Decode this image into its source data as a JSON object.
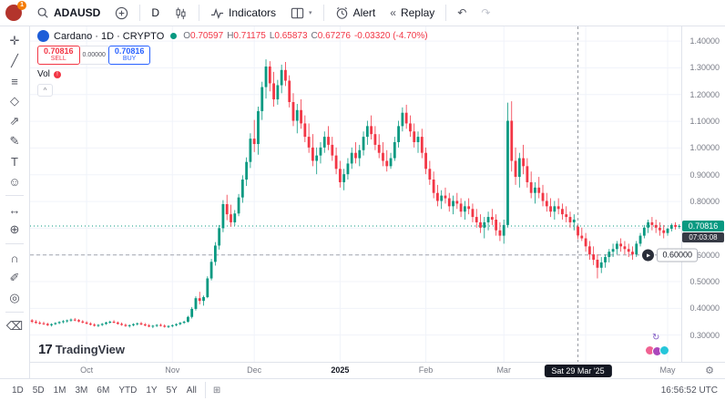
{
  "top_toolbar": {
    "badge": "1",
    "symbol": "ADAUSD",
    "interval": "D",
    "indicators_label": "Indicators",
    "alert_label": "Alert",
    "replay_label": "Replay"
  },
  "legend": {
    "title": "Cardano · 1D · CRYPTO",
    "o_label": "O",
    "o": "0.70597",
    "h_label": "H",
    "h": "0.71175",
    "l_label": "L",
    "l": "0.65873",
    "c_label": "C",
    "c": "0.67276",
    "change": "-0.03320 (-4.70%)",
    "vol_label": "Vol"
  },
  "trade_widget": {
    "sell_price": "0.70816",
    "sell_label": "SELL",
    "spread": "0.00000",
    "buy_price": "0.70816",
    "buy_label": "BUY"
  },
  "price_axis": {
    "labels": [
      {
        "text": "1.40000",
        "value": 1.4
      },
      {
        "text": "1.30000",
        "value": 1.3
      },
      {
        "text": "1.20000",
        "value": 1.2
      },
      {
        "text": "1.10000",
        "value": 1.1
      },
      {
        "text": "1.00000",
        "value": 1.0
      },
      {
        "text": "0.90000",
        "value": 0.9
      },
      {
        "text": "0.80000",
        "value": 0.8
      },
      {
        "text": "0.60000",
        "value": 0.6
      },
      {
        "text": "0.50000",
        "value": 0.5
      },
      {
        "text": "0.40000",
        "value": 0.4
      },
      {
        "text": "0.30000",
        "value": 0.3
      }
    ],
    "current_price_label": "0.70816",
    "countdown": "07:03:08",
    "alert_line_label": "0.60000"
  },
  "time_axis": {
    "labels": [
      {
        "text": "Oct",
        "idx": 14
      },
      {
        "text": "Nov",
        "idx": 36
      },
      {
        "text": "Dec",
        "idx": 57
      },
      {
        "text": "2025",
        "idx": 79,
        "bold": true
      },
      {
        "text": "Feb",
        "idx": 101
      },
      {
        "text": "Mar",
        "idx": 121
      },
      {
        "text": "May",
        "idx": 163
      }
    ],
    "crosshair_label": "Sat 29 Mar '25"
  },
  "bottom_bar": {
    "ranges": [
      "1D",
      "5D",
      "1M",
      "3M",
      "6M",
      "YTD",
      "1Y",
      "5Y",
      "All"
    ],
    "clock": "16:56:52 UTC"
  },
  "watermark": {
    "logo": "17",
    "text": "TradingView"
  },
  "left_toolbar": {
    "items": [
      {
        "name": "cursor-icon",
        "glyph": "✛"
      },
      {
        "name": "trend-line-icon",
        "glyph": "╱"
      },
      {
        "name": "fib-retracement-icon",
        "glyph": "≡"
      },
      {
        "name": "xabcd-pattern-icon",
        "glyph": "◇"
      },
      {
        "name": "long-position-icon",
        "glyph": "⇗"
      },
      {
        "name": "brush-icon",
        "glyph": "✎"
      },
      {
        "name": "text-icon",
        "glyph": "T"
      },
      {
        "name": "emoji-icon",
        "glyph": "☺"
      },
      {
        "sep": true
      },
      {
        "name": "measure-icon",
        "glyph": "↔"
      },
      {
        "name": "zoom-in-icon",
        "glyph": "⊕"
      },
      {
        "sep": true
      },
      {
        "name": "magnet-icon",
        "glyph": "∩"
      },
      {
        "name": "edit-icon",
        "glyph": "✐"
      },
      {
        "name": "hide-drawings-icon",
        "glyph": "◎"
      },
      {
        "sep": true
      },
      {
        "name": "remove-drawings-icon",
        "glyph": "⌫"
      }
    ]
  },
  "chart_data": {
    "type": "candlestick",
    "symbol": "ADAUSD",
    "timeframe": "1D",
    "price_top": 1.455,
    "price_bottom": 0.2,
    "grid_prices": [
      0.3,
      0.4,
      0.5,
      0.6,
      0.7,
      0.8,
      0.9,
      1.0,
      1.1,
      1.2,
      1.3,
      1.4
    ],
    "month_grid_idx": [
      14,
      36,
      57,
      79,
      101,
      121,
      142,
      163
    ],
    "crosshair_idx": 140,
    "current_price": 0.70816,
    "alert_price": 0.6,
    "up_color": "#089981",
    "down_color": "#f23645",
    "candles": [
      [
        0.355,
        0.36,
        0.345,
        0.35
      ],
      [
        0.35,
        0.356,
        0.342,
        0.346
      ],
      [
        0.346,
        0.352,
        0.34,
        0.344
      ],
      [
        0.344,
        0.35,
        0.338,
        0.342
      ],
      [
        0.342,
        0.346,
        0.334,
        0.337
      ],
      [
        0.337,
        0.344,
        0.332,
        0.341
      ],
      [
        0.341,
        0.348,
        0.338,
        0.345
      ],
      [
        0.345,
        0.352,
        0.341,
        0.349
      ],
      [
        0.349,
        0.356,
        0.344,
        0.352
      ],
      [
        0.352,
        0.358,
        0.347,
        0.355
      ],
      [
        0.355,
        0.362,
        0.35,
        0.358
      ],
      [
        0.358,
        0.364,
        0.352,
        0.356
      ],
      [
        0.356,
        0.36,
        0.348,
        0.351
      ],
      [
        0.351,
        0.356,
        0.344,
        0.347
      ],
      [
        0.347,
        0.352,
        0.34,
        0.343
      ],
      [
        0.343,
        0.348,
        0.336,
        0.339
      ],
      [
        0.339,
        0.344,
        0.332,
        0.335
      ],
      [
        0.335,
        0.341,
        0.33,
        0.338
      ],
      [
        0.338,
        0.345,
        0.334,
        0.342
      ],
      [
        0.342,
        0.35,
        0.338,
        0.347
      ],
      [
        0.347,
        0.354,
        0.343,
        0.35
      ],
      [
        0.35,
        0.356,
        0.344,
        0.347
      ],
      [
        0.347,
        0.351,
        0.339,
        0.342
      ],
      [
        0.342,
        0.347,
        0.335,
        0.338
      ],
      [
        0.338,
        0.343,
        0.331,
        0.334
      ],
      [
        0.334,
        0.34,
        0.328,
        0.337
      ],
      [
        0.337,
        0.344,
        0.333,
        0.341
      ],
      [
        0.341,
        0.347,
        0.336,
        0.344
      ],
      [
        0.344,
        0.349,
        0.337,
        0.34
      ],
      [
        0.34,
        0.345,
        0.333,
        0.336
      ],
      [
        0.336,
        0.341,
        0.329,
        0.332
      ],
      [
        0.332,
        0.338,
        0.326,
        0.335
      ],
      [
        0.335,
        0.341,
        0.33,
        0.338
      ],
      [
        0.338,
        0.343,
        0.332,
        0.335
      ],
      [
        0.335,
        0.34,
        0.328,
        0.331
      ],
      [
        0.331,
        0.337,
        0.326,
        0.334
      ],
      [
        0.334,
        0.34,
        0.329,
        0.337
      ],
      [
        0.337,
        0.344,
        0.333,
        0.341
      ],
      [
        0.341,
        0.349,
        0.337,
        0.346
      ],
      [
        0.346,
        0.354,
        0.342,
        0.35
      ],
      [
        0.35,
        0.372,
        0.347,
        0.368
      ],
      [
        0.368,
        0.405,
        0.362,
        0.398
      ],
      [
        0.398,
        0.445,
        0.392,
        0.438
      ],
      [
        0.438,
        0.462,
        0.415,
        0.428
      ],
      [
        0.428,
        0.448,
        0.41,
        0.442
      ],
      [
        0.442,
        0.52,
        0.438,
        0.512
      ],
      [
        0.512,
        0.585,
        0.505,
        0.574
      ],
      [
        0.574,
        0.648,
        0.56,
        0.635
      ],
      [
        0.635,
        0.712,
        0.62,
        0.7
      ],
      [
        0.7,
        0.805,
        0.685,
        0.79
      ],
      [
        0.79,
        0.825,
        0.73,
        0.752
      ],
      [
        0.752,
        0.788,
        0.705,
        0.722
      ],
      [
        0.722,
        0.768,
        0.71,
        0.755
      ],
      [
        0.755,
        0.828,
        0.745,
        0.815
      ],
      [
        0.815,
        0.898,
        0.795,
        0.882
      ],
      [
        0.882,
        0.965,
        0.858,
        0.948
      ],
      [
        0.948,
        1.055,
        0.925,
        1.035
      ],
      [
        1.035,
        1.105,
        0.985,
        1.015
      ],
      [
        1.015,
        1.155,
        0.975,
        1.138
      ],
      [
        1.138,
        1.248,
        1.105,
        1.228
      ],
      [
        1.228,
        1.332,
        1.185,
        1.305
      ],
      [
        1.305,
        1.325,
        1.212,
        1.242
      ],
      [
        1.242,
        1.285,
        1.155,
        1.182
      ],
      [
        1.182,
        1.255,
        1.162,
        1.235
      ],
      [
        1.235,
        1.312,
        1.205,
        1.292
      ],
      [
        1.292,
        1.322,
        1.232,
        1.252
      ],
      [
        1.252,
        1.272,
        1.152,
        1.172
      ],
      [
        1.172,
        1.205,
        1.082,
        1.102
      ],
      [
        1.102,
        1.165,
        1.055,
        1.142
      ],
      [
        1.142,
        1.182,
        1.072,
        1.092
      ],
      [
        1.092,
        1.122,
        1.022,
        1.042
      ],
      [
        1.042,
        1.092,
        0.982,
        1.002
      ],
      [
        1.002,
        1.052,
        0.932,
        0.952
      ],
      [
        0.952,
        1.002,
        0.902,
        0.972
      ],
      [
        0.972,
        1.022,
        0.942,
        1.002
      ],
      [
        1.002,
        1.062,
        0.982,
        1.042
      ],
      [
        1.042,
        1.082,
        0.992,
        1.012
      ],
      [
        1.012,
        1.042,
        0.952,
        0.972
      ],
      [
        0.972,
        1.002,
        0.902,
        0.922
      ],
      [
        0.922,
        0.952,
        0.852,
        0.872
      ],
      [
        0.872,
        0.922,
        0.842,
        0.902
      ],
      [
        0.902,
        0.962,
        0.882,
        0.942
      ],
      [
        0.942,
        1.002,
        0.922,
        0.982
      ],
      [
        0.982,
        1.022,
        0.942,
        0.962
      ],
      [
        0.962,
        1.012,
        0.932,
        0.992
      ],
      [
        0.992,
        1.062,
        0.972,
        1.042
      ],
      [
        1.042,
        1.102,
        1.012,
        1.082
      ],
      [
        1.082,
        1.122,
        1.032,
        1.052
      ],
      [
        1.052,
        1.082,
        0.992,
        1.012
      ],
      [
        1.012,
        1.052,
        0.962,
        0.982
      ],
      [
        0.982,
        1.022,
        0.932,
        0.952
      ],
      [
        0.952,
        0.992,
        0.912,
        0.932
      ],
      [
        0.932,
        0.982,
        0.922,
        0.962
      ],
      [
        0.962,
        1.042,
        0.952,
        1.022
      ],
      [
        1.022,
        1.102,
        1.002,
        1.082
      ],
      [
        1.082,
        1.152,
        1.062,
        1.132
      ],
      [
        1.132,
        1.162,
        1.072,
        1.092
      ],
      [
        1.092,
        1.122,
        1.042,
        1.062
      ],
      [
        1.062,
        1.092,
        1.002,
        1.022
      ],
      [
        1.022,
        1.062,
        0.982,
        1.042
      ],
      [
        1.042,
        1.072,
        0.962,
        0.982
      ],
      [
        0.982,
        1.002,
        0.902,
        0.922
      ],
      [
        0.922,
        0.952,
        0.862,
        0.882
      ],
      [
        0.882,
        0.912,
        0.812,
        0.832
      ],
      [
        0.832,
        0.862,
        0.782,
        0.802
      ],
      [
        0.802,
        0.842,
        0.772,
        0.822
      ],
      [
        0.822,
        0.852,
        0.792,
        0.812
      ],
      [
        0.812,
        0.832,
        0.762,
        0.782
      ],
      [
        0.782,
        0.822,
        0.752,
        0.802
      ],
      [
        0.802,
        0.832,
        0.772,
        0.792
      ],
      [
        0.792,
        0.812,
        0.742,
        0.762
      ],
      [
        0.762,
        0.802,
        0.732,
        0.782
      ],
      [
        0.782,
        0.812,
        0.752,
        0.772
      ],
      [
        0.772,
        0.792,
        0.722,
        0.742
      ],
      [
        0.742,
        0.772,
        0.702,
        0.722
      ],
      [
        0.722,
        0.752,
        0.682,
        0.702
      ],
      [
        0.702,
        0.742,
        0.662,
        0.722
      ],
      [
        0.722,
        0.762,
        0.692,
        0.742
      ],
      [
        0.742,
        0.772,
        0.712,
        0.732
      ],
      [
        0.732,
        0.752,
        0.672,
        0.692
      ],
      [
        0.692,
        0.722,
        0.652,
        0.672
      ],
      [
        0.672,
        0.732,
        0.642,
        0.712
      ],
      [
        0.712,
        1.17,
        0.702,
        1.102
      ],
      [
        1.102,
        1.175,
        0.912,
        0.952
      ],
      [
        0.952,
        1.002,
        0.862,
        0.892
      ],
      [
        0.892,
        0.982,
        0.852,
        0.962
      ],
      [
        0.962,
        1.012,
        0.902,
        0.932
      ],
      [
        0.932,
        0.962,
        0.852,
        0.872
      ],
      [
        0.872,
        0.912,
        0.812,
        0.832
      ],
      [
        0.832,
        0.872,
        0.792,
        0.852
      ],
      [
        0.852,
        0.892,
        0.812,
        0.832
      ],
      [
        0.832,
        0.862,
        0.782,
        0.802
      ],
      [
        0.802,
        0.832,
        0.762,
        0.782
      ],
      [
        0.782,
        0.812,
        0.742,
        0.762
      ],
      [
        0.762,
        0.802,
        0.732,
        0.782
      ],
      [
        0.782,
        0.812,
        0.752,
        0.772
      ],
      [
        0.772,
        0.792,
        0.732,
        0.752
      ],
      [
        0.752,
        0.782,
        0.722,
        0.742
      ],
      [
        0.742,
        0.762,
        0.702,
        0.722
      ],
      [
        0.722,
        0.752,
        0.692,
        0.732
      ],
      [
        0.70597,
        0.71175,
        0.65873,
        0.67276
      ],
      [
        0.672,
        0.702,
        0.652,
        0.662
      ],
      [
        0.662,
        0.682,
        0.612,
        0.632
      ],
      [
        0.632,
        0.652,
        0.582,
        0.602
      ],
      [
        0.602,
        0.632,
        0.562,
        0.582
      ],
      [
        0.582,
        0.602,
        0.512,
        0.552
      ],
      [
        0.552,
        0.592,
        0.532,
        0.572
      ],
      [
        0.572,
        0.602,
        0.552,
        0.592
      ],
      [
        0.592,
        0.622,
        0.572,
        0.612
      ],
      [
        0.612,
        0.642,
        0.592,
        0.622
      ],
      [
        0.622,
        0.652,
        0.602,
        0.642
      ],
      [
        0.642,
        0.662,
        0.612,
        0.632
      ],
      [
        0.632,
        0.652,
        0.602,
        0.622
      ],
      [
        0.622,
        0.642,
        0.592,
        0.612
      ],
      [
        0.612,
        0.632,
        0.582,
        0.602
      ],
      [
        0.602,
        0.652,
        0.592,
        0.642
      ],
      [
        0.642,
        0.682,
        0.632,
        0.672
      ],
      [
        0.672,
        0.712,
        0.662,
        0.702
      ],
      [
        0.702,
        0.732,
        0.682,
        0.722
      ],
      [
        0.722,
        0.742,
        0.692,
        0.712
      ],
      [
        0.712,
        0.732,
        0.682,
        0.702
      ],
      [
        0.702,
        0.722,
        0.672,
        0.692
      ],
      [
        0.692,
        0.712,
        0.662,
        0.682
      ],
      [
        0.682,
        0.702,
        0.672,
        0.698
      ],
      [
        0.698,
        0.718,
        0.688,
        0.712
      ],
      [
        0.712,
        0.722,
        0.695,
        0.705
      ],
      [
        0.705,
        0.715,
        0.698,
        0.70816
      ]
    ]
  }
}
